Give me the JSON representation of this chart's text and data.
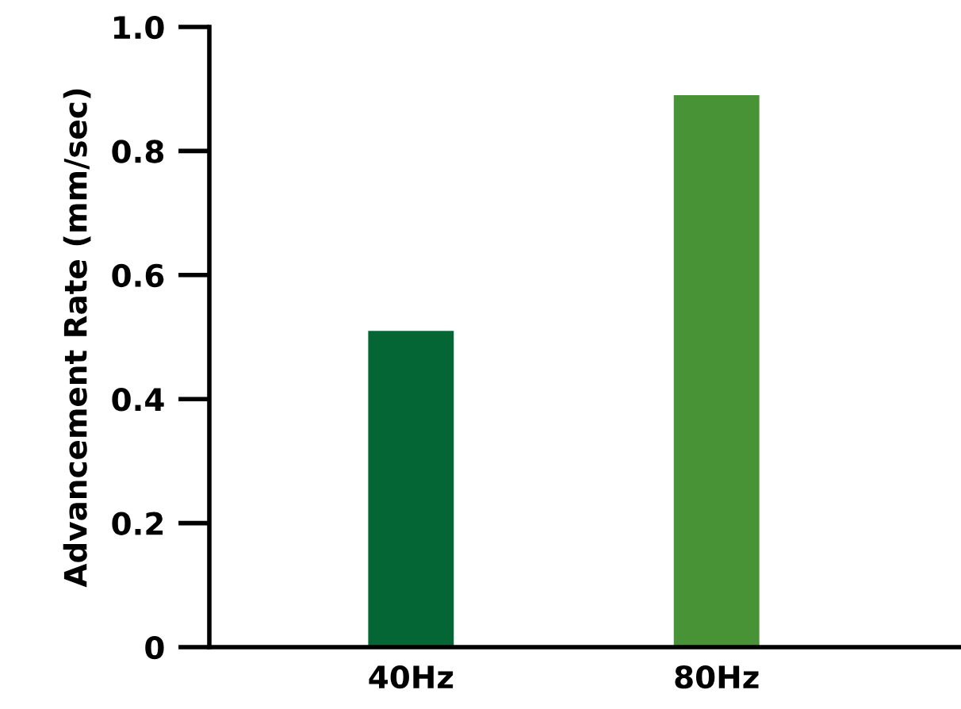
{
  "chart_data": {
    "type": "bar",
    "ylabel": "Advancement Rate (mm/sec)",
    "categories": [
      "40Hz",
      "80Hz"
    ],
    "values": [
      0.51,
      0.89
    ],
    "colors": [
      "#046635",
      "#489335"
    ],
    "ylim": [
      0,
      1.0
    ],
    "yticks": [
      {
        "value": 0,
        "label": "0"
      },
      0.2,
      0.4,
      0.6,
      0.8,
      {
        "value": 1.0,
        "label": "1.0"
      }
    ],
    "grid": false
  }
}
